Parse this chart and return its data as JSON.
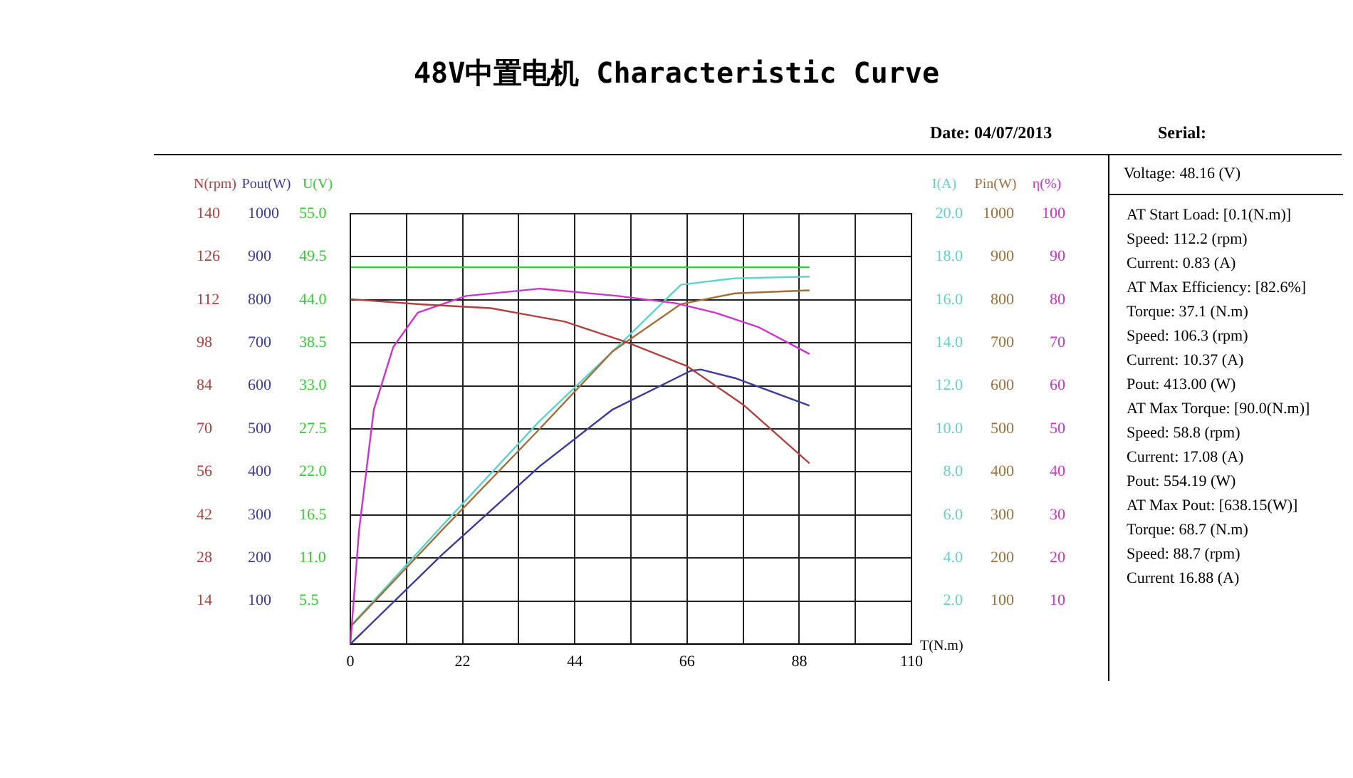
{
  "chart_data": [
    {
      "type": "line",
      "title": "48V中置电机   Characteristic Curve",
      "xlabel": "T(N.m)",
      "ylabel": "U(V)",
      "y2label": "I(A)",
      "xlim": [
        0,
        110
      ],
      "xticks": [
        0,
        {
          "value": 11,
          "label": null
        },
        22,
        {
          "value": 33,
          "label": null
        },
        44,
        {
          "value": 55,
          "label": null
        },
        66,
        {
          "value": 77,
          "label": null
        },
        88,
        {
          "value": 99,
          "label": null
        },
        110
      ],
      "ylim": [
        0,
        55
      ],
      "yticks": [
        {
          "value": 5.5,
          "label": "5.5"
        },
        {
          "value": 11,
          "label": "11.0"
        },
        {
          "value": 16.5,
          "label": "16.5"
        },
        {
          "value": 22,
          "label": "22.0"
        },
        {
          "value": 27.5,
          "label": "27.5"
        },
        {
          "value": 33,
          "label": "33.0"
        },
        {
          "value": 38.5,
          "label": "38.5"
        },
        {
          "value": 44,
          "label": "44.0"
        },
        {
          "value": 49.5,
          "label": "49.5"
        },
        {
          "value": 55,
          "label": "55.0"
        }
      ],
      "y2lim": [
        0,
        20
      ],
      "y2ticks": [
        {
          "value": 2,
          "label": "2.0"
        },
        {
          "value": 4,
          "label": "4.0"
        },
        {
          "value": 6,
          "label": "6.0"
        },
        {
          "value": 8,
          "label": "8.0"
        },
        {
          "value": 10,
          "label": "10.0"
        },
        {
          "value": 12,
          "label": "12.0"
        },
        {
          "value": 14,
          "label": "14.0"
        },
        {
          "value": 16,
          "label": "16.0"
        },
        {
          "value": 18,
          "label": "18.0"
        },
        {
          "value": 20,
          "label": "20.0"
        }
      ],
      "grid": true,
      "legend": false,
      "marker": "none",
      "line_style": "solid",
      "series": [
        {
          "color": "#33cc33",
          "x": [
            0,
            90
          ],
          "values": [
            48.16,
            48.16
          ]
        },
        {
          "color": "#5fd3c8",
          "axis": "y2",
          "x": [
            0,
            18,
            37.1,
            51.4,
            64.8,
            75.4,
            90
          ],
          "values": [
            0.83,
            5.5,
            10.37,
            13.6,
            16.7,
            17.0,
            17.08
          ]
        }
      ],
      "annotations": [
        "Date: 04/07/2013",
        "Serial:",
        "Voltage:   48.16 (V)",
        "AT Start Load: [0.1(N.m)]",
        "Speed: 112.2 (rpm)",
        "Current: 0.83 (A)",
        "AT Max Efficiency: [82.6%]",
        "Torque: 37.1 (N.m)",
        "Speed: 106.3 (rpm)",
        "Current: 10.37 (A)",
        "Pout: 413.00 (W)",
        "AT Max Torque: [90.0(N.m)]",
        "Speed: 58.8 (rpm)",
        "Current: 17.08 (A)",
        "Pout: 554.19 (W)",
        "AT Max Pout: [638.15(W)]",
        "Torque: 68.7 (N.m)",
        "Speed: 88.7 (rpm)",
        "Current 16.88 (A)"
      ]
    },
    {
      "type": "line",
      "ylabel": "Pout(W)",
      "y2label": "Pin(W)",
      "xlim": [
        0,
        110
      ],
      "tick_labels": "y",
      "ylim": [
        0,
        1000
      ],
      "yticks": [
        100,
        200,
        300,
        400,
        500,
        600,
        700,
        800,
        900,
        1000
      ],
      "y2lim": [
        0,
        1000
      ],
      "y2ticks": [
        100,
        200,
        300,
        400,
        500,
        600,
        700,
        800,
        900,
        1000
      ],
      "legend": false,
      "marker": "none",
      "line_style": "solid",
      "series": [
        {
          "color": "#3b3b9a",
          "x": [
            0,
            18,
            37.1,
            51.4,
            66.7,
            68.7,
            75.4,
            90
          ],
          "values": [
            0,
            208,
            413,
            545,
            635,
            638,
            618,
            554
          ]
        },
        {
          "color": "#a0703a",
          "axis": "y2",
          "x": [
            0,
            18,
            37.1,
            51.4,
            64.8,
            75.4,
            90
          ],
          "values": [
            40,
            265,
            500,
            680,
            790,
            815,
            822
          ]
        }
      ]
    },
    {
      "type": "line",
      "ylabel": "N(rpm)",
      "y2label": "η(%)",
      "xlim": [
        0,
        110
      ],
      "tick_labels": "y",
      "ylim": [
        0,
        140
      ],
      "yticks": [
        14,
        28,
        42,
        56,
        70,
        84,
        98,
        112,
        126,
        140
      ],
      "y2lim": [
        0,
        100
      ],
      "y2ticks": [
        10,
        20,
        30,
        40,
        50,
        60,
        70,
        80,
        90,
        100
      ],
      "legend": false,
      "marker": "none",
      "line_style": "solid",
      "series": [
        {
          "color": "#b0413e",
          "x": [
            0,
            14,
            27.5,
            42,
            54,
            66,
            77,
            90
          ],
          "values": [
            112.2,
            110.5,
            109.3,
            104.9,
            98.3,
            90.4,
            77.9,
            58.8
          ]
        },
        {
          "color": "#cc33cc",
          "axis": "y2",
          "x": [
            0,
            1.7,
            4.6,
            8.4,
            13.2,
            22.7,
            37.1,
            52.4,
            63.8,
            71.5,
            80.1,
            90
          ],
          "values": [
            0,
            26.4,
            54.5,
            69,
            77,
            80.9,
            82.6,
            80.9,
            79.2,
            77,
            73.6,
            67.4
          ]
        }
      ]
    }
  ]
}
